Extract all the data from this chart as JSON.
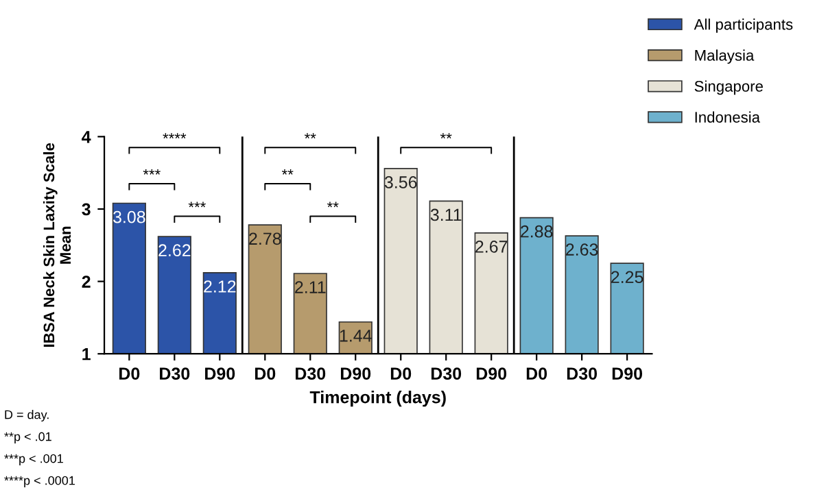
{
  "chart_data": {
    "type": "bar",
    "categories": [
      "D0",
      "D30",
      "D90",
      "D0",
      "D30",
      "D90",
      "D0",
      "D30",
      "D90",
      "D0",
      "D30",
      "D90"
    ],
    "series": [
      {
        "name": "All participants",
        "color": "#2c54a8",
        "values": [
          3.08,
          2.62,
          2.12,
          null,
          null,
          null,
          null,
          null,
          null,
          null,
          null,
          null
        ]
      },
      {
        "name": "Malaysia",
        "color": "#b69b6d",
        "values": [
          null,
          null,
          null,
          2.78,
          2.11,
          1.44,
          null,
          null,
          null,
          null,
          null,
          null
        ]
      },
      {
        "name": "Singapore",
        "color": "#e6e2d6",
        "values": [
          null,
          null,
          null,
          null,
          null,
          null,
          3.56,
          3.11,
          2.67,
          null,
          null,
          null
        ]
      },
      {
        "name": "Indonesia",
        "color": "#6eb1cd",
        "values": [
          null,
          null,
          null,
          null,
          null,
          null,
          null,
          null,
          null,
          2.88,
          2.63,
          2.25
        ]
      }
    ],
    "ylim": [
      1,
      4
    ],
    "yticks": [
      1,
      2,
      3,
      4
    ],
    "ylabel": "IBSA Neck Skin Laxity Scale\nMean",
    "xlabel": "Timepoint (days)",
    "data_labels": true,
    "legend": "top right",
    "grid": false,
    "annotations": [
      "****",
      "***",
      "***",
      "**",
      "**",
      "**",
      "**",
      "D = day.",
      "**p < .01",
      "***p < .001",
      "****p < .0001"
    ]
  }
}
